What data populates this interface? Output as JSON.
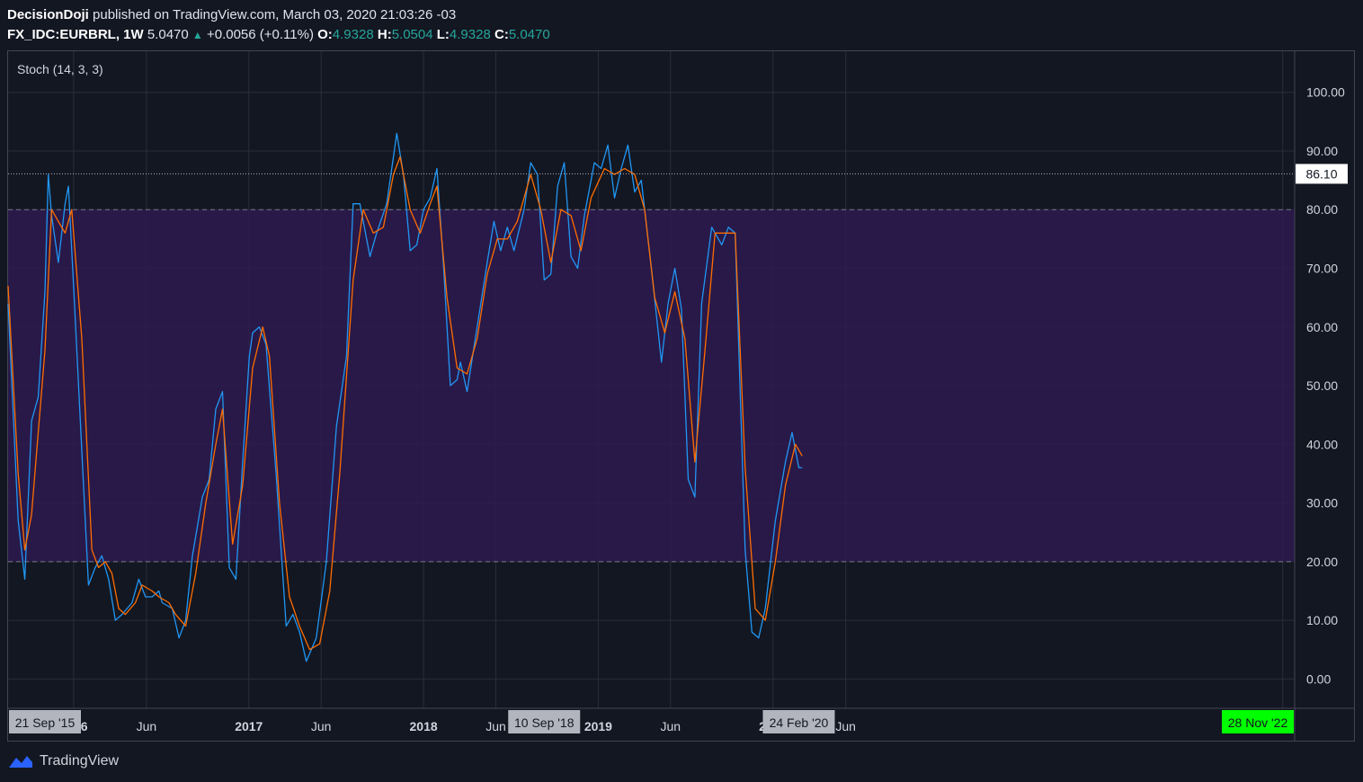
{
  "header": {
    "author": "DecisionDoji",
    "published_text": "published on TradingView.com, March 03, 2020 21:03:26 -03",
    "symbol": "FX_IDC:EURBRL, 1W",
    "price": "5.0470",
    "change": "+0.0056 (+0.11%)",
    "open_label": "O:",
    "open": "4.9328",
    "high_label": "H:",
    "high": "5.0504",
    "low_label": "L:",
    "low": "4.9328",
    "close_label": "C:",
    "close": "5.0470"
  },
  "footer": {
    "brand": "TradingView"
  },
  "colors": {
    "background": "#131722",
    "band_fill": "#2e1a4f",
    "k_line": "#2196f3",
    "d_line": "#ff6d00",
    "grid": "#2a2e39",
    "highlight_green": "#00ff00",
    "label_gray": "#b2b5be"
  },
  "chart_data": {
    "type": "line",
    "title": "Stoch (14, 3, 3)",
    "ylim": [
      -5,
      107
    ],
    "y_ticks": [
      "100.00",
      "90.00",
      "80.00",
      "70.00",
      "60.00",
      "50.00",
      "40.00",
      "30.00",
      "20.00",
      "10.00",
      "0.00"
    ],
    "y_tick_values": [
      100,
      90,
      80,
      70,
      60,
      50,
      40,
      30,
      20,
      10,
      0
    ],
    "band": {
      "upper": 80,
      "lower": 20
    },
    "current_value_label": "86.10",
    "current_value": 86.1,
    "x_range": [
      "2015-08-17",
      "2022-12-26"
    ],
    "x_ticks": [
      {
        "label": "2016",
        "date": "2016-01-01",
        "bold": true
      },
      {
        "label": "Jun",
        "date": "2016-06-01",
        "bold": false
      },
      {
        "label": "2017",
        "date": "2017-01-01",
        "bold": true
      },
      {
        "label": "Jun",
        "date": "2017-06-01",
        "bold": false
      },
      {
        "label": "2018",
        "date": "2018-01-01",
        "bold": true
      },
      {
        "label": "Jun",
        "date": "2018-06-01",
        "bold": false
      },
      {
        "label": "2019",
        "date": "2019-01-01",
        "bold": true
      },
      {
        "label": "Jun",
        "date": "2019-06-01",
        "bold": false
      },
      {
        "label": "2020",
        "date": "2020-01-01",
        "bold": true
      },
      {
        "label": "Jun",
        "date": "2020-06-01",
        "bold": false
      }
    ],
    "x_extra_grid": [
      "2022-12-01"
    ],
    "x_highlights": [
      {
        "label": "21 Sep '15",
        "date": "2015-09-21",
        "style": "gray"
      },
      {
        "label": "10 Sep '18",
        "date": "2018-09-10",
        "style": "gray"
      },
      {
        "label": "24 Feb '20",
        "date": "2020-02-24",
        "style": "gray"
      },
      {
        "label": "28 Nov '22",
        "date": "2022-11-28",
        "style": "green"
      }
    ],
    "series": [
      {
        "color": "#2196f3",
        "points": [
          [
            "2015-08-17",
            64
          ],
          [
            "2015-09-07",
            27
          ],
          [
            "2015-09-21",
            17
          ],
          [
            "2015-10-05",
            44
          ],
          [
            "2015-10-19",
            48
          ],
          [
            "2015-11-02",
            66
          ],
          [
            "2015-11-09",
            86
          ],
          [
            "2015-11-16",
            79
          ],
          [
            "2015-11-30",
            71
          ],
          [
            "2015-12-14",
            81
          ],
          [
            "2015-12-21",
            84
          ],
          [
            "2016-01-04",
            62
          ],
          [
            "2016-02-01",
            16
          ],
          [
            "2016-02-15",
            19
          ],
          [
            "2016-02-29",
            21
          ],
          [
            "2016-03-14",
            17
          ],
          [
            "2016-03-28",
            10
          ],
          [
            "2016-04-11",
            11
          ],
          [
            "2016-05-02",
            13
          ],
          [
            "2016-05-16",
            17
          ],
          [
            "2016-05-30",
            14
          ],
          [
            "2016-06-13",
            14
          ],
          [
            "2016-06-27",
            15
          ],
          [
            "2016-07-04",
            13
          ],
          [
            "2016-07-25",
            12
          ],
          [
            "2016-08-08",
            7
          ],
          [
            "2016-08-22",
            10
          ],
          [
            "2016-09-05",
            21
          ],
          [
            "2016-09-26",
            31
          ],
          [
            "2016-10-10",
            34
          ],
          [
            "2016-10-24",
            46
          ],
          [
            "2016-11-07",
            49
          ],
          [
            "2016-11-21",
            19
          ],
          [
            "2016-12-05",
            17
          ],
          [
            "2016-12-19",
            37
          ],
          [
            "2017-01-02",
            55
          ],
          [
            "2017-01-09",
            59
          ],
          [
            "2017-01-23",
            60
          ],
          [
            "2017-02-06",
            57
          ],
          [
            "2017-02-27",
            35
          ],
          [
            "2017-03-20",
            9
          ],
          [
            "2017-04-03",
            11
          ],
          [
            "2017-04-17",
            8
          ],
          [
            "2017-05-01",
            3
          ],
          [
            "2017-05-22",
            7
          ],
          [
            "2017-06-12",
            20
          ],
          [
            "2017-07-03",
            43
          ],
          [
            "2017-07-24",
            55
          ],
          [
            "2017-08-07",
            81
          ],
          [
            "2017-08-21",
            81
          ],
          [
            "2017-09-11",
            72
          ],
          [
            "2017-09-25",
            76
          ],
          [
            "2017-10-16",
            81
          ],
          [
            "2017-10-30",
            89
          ],
          [
            "2017-11-06",
            93
          ],
          [
            "2017-11-20",
            86
          ],
          [
            "2017-12-04",
            73
          ],
          [
            "2017-12-18",
            74
          ],
          [
            "2018-01-01",
            80
          ],
          [
            "2018-01-15",
            82
          ],
          [
            "2018-01-29",
            87
          ],
          [
            "2018-02-12",
            70
          ],
          [
            "2018-02-26",
            50
          ],
          [
            "2018-03-12",
            51
          ],
          [
            "2018-03-19",
            54
          ],
          [
            "2018-04-02",
            49
          ],
          [
            "2018-04-23",
            60
          ],
          [
            "2018-05-14",
            71
          ],
          [
            "2018-05-28",
            78
          ],
          [
            "2018-06-11",
            73
          ],
          [
            "2018-06-25",
            77
          ],
          [
            "2018-07-09",
            73
          ],
          [
            "2018-07-30",
            80
          ],
          [
            "2018-08-13",
            88
          ],
          [
            "2018-08-27",
            86
          ],
          [
            "2018-09-10",
            68
          ],
          [
            "2018-09-24",
            69
          ],
          [
            "2018-10-08",
            84
          ],
          [
            "2018-10-22",
            88
          ],
          [
            "2018-11-05",
            72
          ],
          [
            "2018-11-19",
            70
          ],
          [
            "2018-12-03",
            79
          ],
          [
            "2018-12-24",
            88
          ],
          [
            "2019-01-07",
            87
          ],
          [
            "2019-01-21",
            91
          ],
          [
            "2019-02-04",
            82
          ],
          [
            "2019-02-18",
            87
          ],
          [
            "2019-03-04",
            91
          ],
          [
            "2019-03-18",
            83
          ],
          [
            "2019-04-01",
            85
          ],
          [
            "2019-04-22",
            70
          ],
          [
            "2019-05-13",
            54
          ],
          [
            "2019-05-27",
            64
          ],
          [
            "2019-06-10",
            70
          ],
          [
            "2019-06-24",
            63
          ],
          [
            "2019-07-08",
            34
          ],
          [
            "2019-07-22",
            31
          ],
          [
            "2019-08-05",
            64
          ],
          [
            "2019-08-26",
            77
          ],
          [
            "2019-09-16",
            74
          ],
          [
            "2019-09-30",
            77
          ],
          [
            "2019-10-14",
            76
          ],
          [
            "2019-11-04",
            22
          ],
          [
            "2019-11-18",
            8
          ],
          [
            "2019-12-02",
            7
          ],
          [
            "2019-12-16",
            12
          ],
          [
            "2020-01-06",
            27
          ],
          [
            "2020-01-27",
            37
          ],
          [
            "2020-02-10",
            42
          ],
          [
            "2020-02-24",
            36
          ],
          [
            "2020-03-02",
            36
          ]
        ]
      },
      {
        "color": "#ff6d00",
        "points": [
          [
            "2015-08-17",
            67
          ],
          [
            "2015-09-07",
            35
          ],
          [
            "2015-09-21",
            22
          ],
          [
            "2015-10-05",
            28
          ],
          [
            "2015-10-19",
            42
          ],
          [
            "2015-11-02",
            56
          ],
          [
            "2015-11-16",
            80
          ],
          [
            "2015-11-30",
            78
          ],
          [
            "2015-12-14",
            76
          ],
          [
            "2015-12-28",
            80
          ],
          [
            "2016-01-18",
            58
          ],
          [
            "2016-02-08",
            22
          ],
          [
            "2016-02-22",
            19
          ],
          [
            "2016-03-07",
            20
          ],
          [
            "2016-03-21",
            18
          ],
          [
            "2016-04-04",
            12
          ],
          [
            "2016-04-18",
            11
          ],
          [
            "2016-05-09",
            13
          ],
          [
            "2016-05-23",
            16
          ],
          [
            "2016-06-13",
            15
          ],
          [
            "2016-06-27",
            14
          ],
          [
            "2016-07-18",
            13
          ],
          [
            "2016-08-01",
            11
          ],
          [
            "2016-08-22",
            9
          ],
          [
            "2016-09-12",
            18
          ],
          [
            "2016-10-03",
            30
          ],
          [
            "2016-10-24",
            40
          ],
          [
            "2016-11-07",
            46
          ],
          [
            "2016-11-28",
            23
          ],
          [
            "2016-12-19",
            33
          ],
          [
            "2017-01-09",
            53
          ],
          [
            "2017-01-30",
            60
          ],
          [
            "2017-02-13",
            55
          ],
          [
            "2017-03-06",
            30
          ],
          [
            "2017-03-27",
            14
          ],
          [
            "2017-04-17",
            9
          ],
          [
            "2017-05-08",
            5
          ],
          [
            "2017-05-29",
            6
          ],
          [
            "2017-06-19",
            15
          ],
          [
            "2017-07-10",
            35
          ],
          [
            "2017-08-07",
            68
          ],
          [
            "2017-08-28",
            80
          ],
          [
            "2017-09-18",
            76
          ],
          [
            "2017-10-09",
            77
          ],
          [
            "2017-10-30",
            86
          ],
          [
            "2017-11-13",
            89
          ],
          [
            "2017-12-04",
            80
          ],
          [
            "2017-12-25",
            76
          ],
          [
            "2018-01-15",
            81
          ],
          [
            "2018-01-29",
            84
          ],
          [
            "2018-02-19",
            65
          ],
          [
            "2018-03-12",
            53
          ],
          [
            "2018-04-02",
            52
          ],
          [
            "2018-04-23",
            58
          ],
          [
            "2018-05-14",
            69
          ],
          [
            "2018-06-04",
            75
          ],
          [
            "2018-06-25",
            75
          ],
          [
            "2018-07-16",
            78
          ],
          [
            "2018-08-13",
            86
          ],
          [
            "2018-09-03",
            80
          ],
          [
            "2018-09-24",
            71
          ],
          [
            "2018-10-15",
            80
          ],
          [
            "2018-11-05",
            79
          ],
          [
            "2018-11-26",
            73
          ],
          [
            "2018-12-17",
            82
          ],
          [
            "2019-01-14",
            87
          ],
          [
            "2019-02-04",
            86
          ],
          [
            "2019-02-25",
            87
          ],
          [
            "2019-03-18",
            86
          ],
          [
            "2019-04-08",
            80
          ],
          [
            "2019-04-29",
            65
          ],
          [
            "2019-05-20",
            59
          ],
          [
            "2019-06-10",
            66
          ],
          [
            "2019-07-01",
            58
          ],
          [
            "2019-07-22",
            37
          ],
          [
            "2019-08-12",
            56
          ],
          [
            "2019-09-02",
            76
          ],
          [
            "2019-09-23",
            76
          ],
          [
            "2019-10-14",
            76
          ],
          [
            "2019-11-04",
            36
          ],
          [
            "2019-11-25",
            12
          ],
          [
            "2019-12-16",
            10
          ],
          [
            "2020-01-06",
            20
          ],
          [
            "2020-01-27",
            33
          ],
          [
            "2020-02-17",
            40
          ],
          [
            "2020-03-02",
            38
          ]
        ]
      }
    ]
  }
}
